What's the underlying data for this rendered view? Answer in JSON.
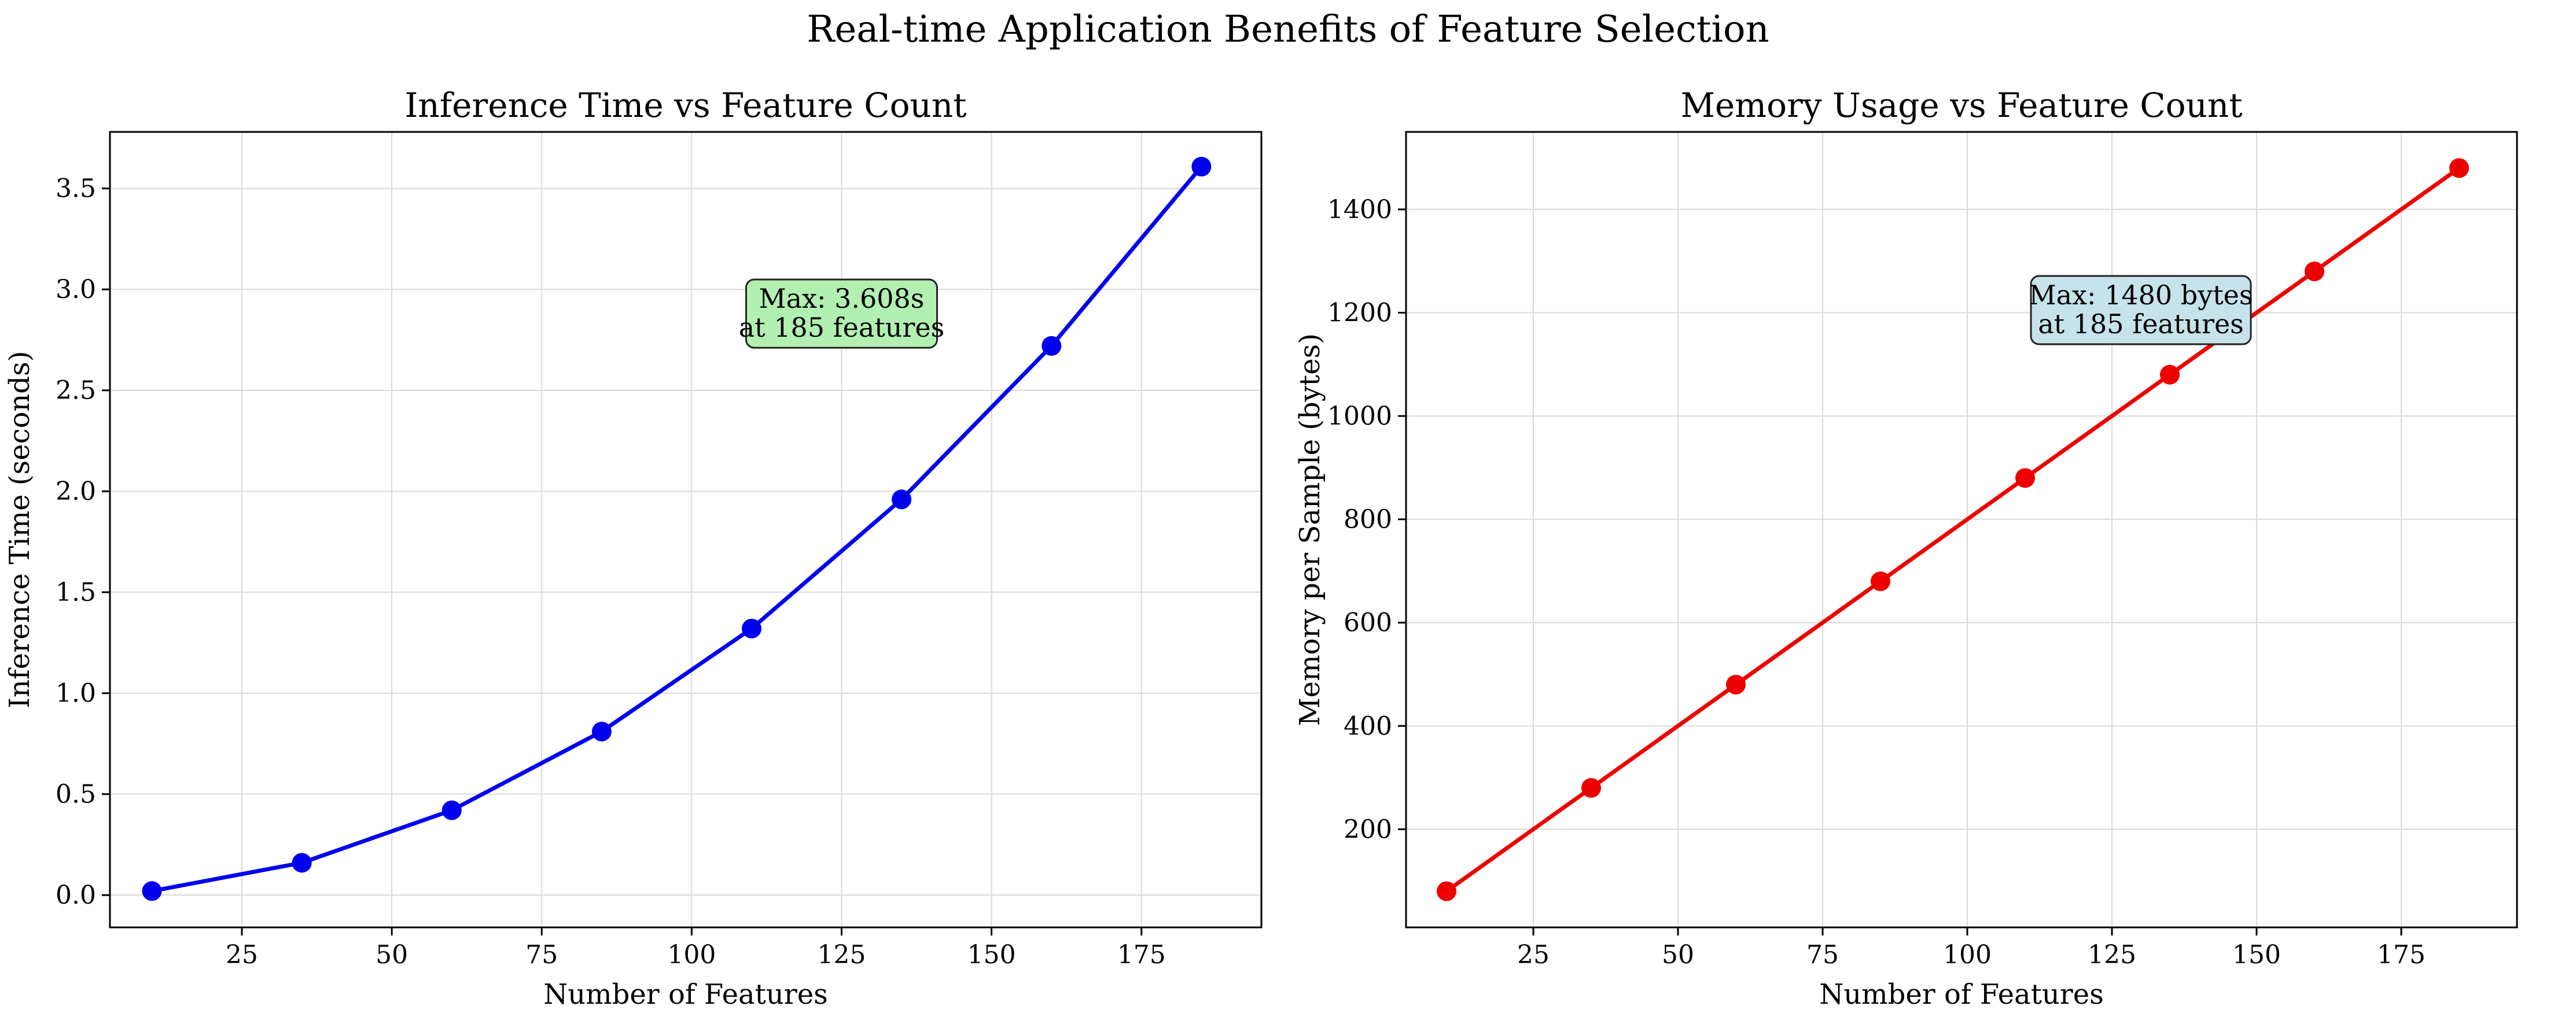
{
  "figure": {
    "suptitle": "Real-time Application Benefits of Feature Selection"
  },
  "chart_data": [
    {
      "type": "line",
      "title": "Inference Time vs Feature Count",
      "xlabel": "Number of Features",
      "ylabel": "Inference Time (seconds)",
      "xlim": [
        3,
        195
      ],
      "ylim": [
        -0.16,
        3.78
      ],
      "xticks": [
        25,
        50,
        75,
        100,
        125,
        150,
        175
      ],
      "yticks": [
        0.0,
        0.5,
        1.0,
        1.5,
        2.0,
        2.5,
        3.0,
        3.5
      ],
      "ytick_labels": [
        "0.0",
        "0.5",
        "1.0",
        "1.5",
        "2.0",
        "2.5",
        "3.0",
        "3.5"
      ],
      "grid": true,
      "color": "#0000ee",
      "x": [
        10,
        35,
        60,
        85,
        110,
        135,
        160,
        185
      ],
      "y": [
        0.02,
        0.16,
        0.42,
        0.81,
        1.32,
        1.96,
        2.72,
        3.608
      ],
      "annotation": {
        "lines": [
          "Max: 3.608s",
          "at 185 features"
        ],
        "x": 125,
        "y": 2.88,
        "bg": "#b2f0b2"
      }
    },
    {
      "type": "line",
      "title": "Memory Usage vs Feature Count",
      "xlabel": "Number of Features",
      "ylabel": "Memory per Sample (bytes)",
      "xlim": [
        3,
        195
      ],
      "ylim": [
        10,
        1550
      ],
      "xticks": [
        25,
        50,
        75,
        100,
        125,
        150,
        175
      ],
      "yticks": [
        200,
        400,
        600,
        800,
        1000,
        1200,
        1400
      ],
      "ytick_labels": [
        "200",
        "400",
        "600",
        "800",
        "1000",
        "1200",
        "1400"
      ],
      "grid": true,
      "color": "#ee0000",
      "x": [
        10,
        35,
        60,
        85,
        110,
        135,
        160,
        185
      ],
      "y": [
        80,
        280,
        480,
        680,
        880,
        1080,
        1280,
        1480
      ],
      "annotation": {
        "lines": [
          "Max: 1480 bytes",
          "at 185 features"
        ],
        "x": 130,
        "y": 1205,
        "bg": "#c6e2ea"
      }
    }
  ]
}
